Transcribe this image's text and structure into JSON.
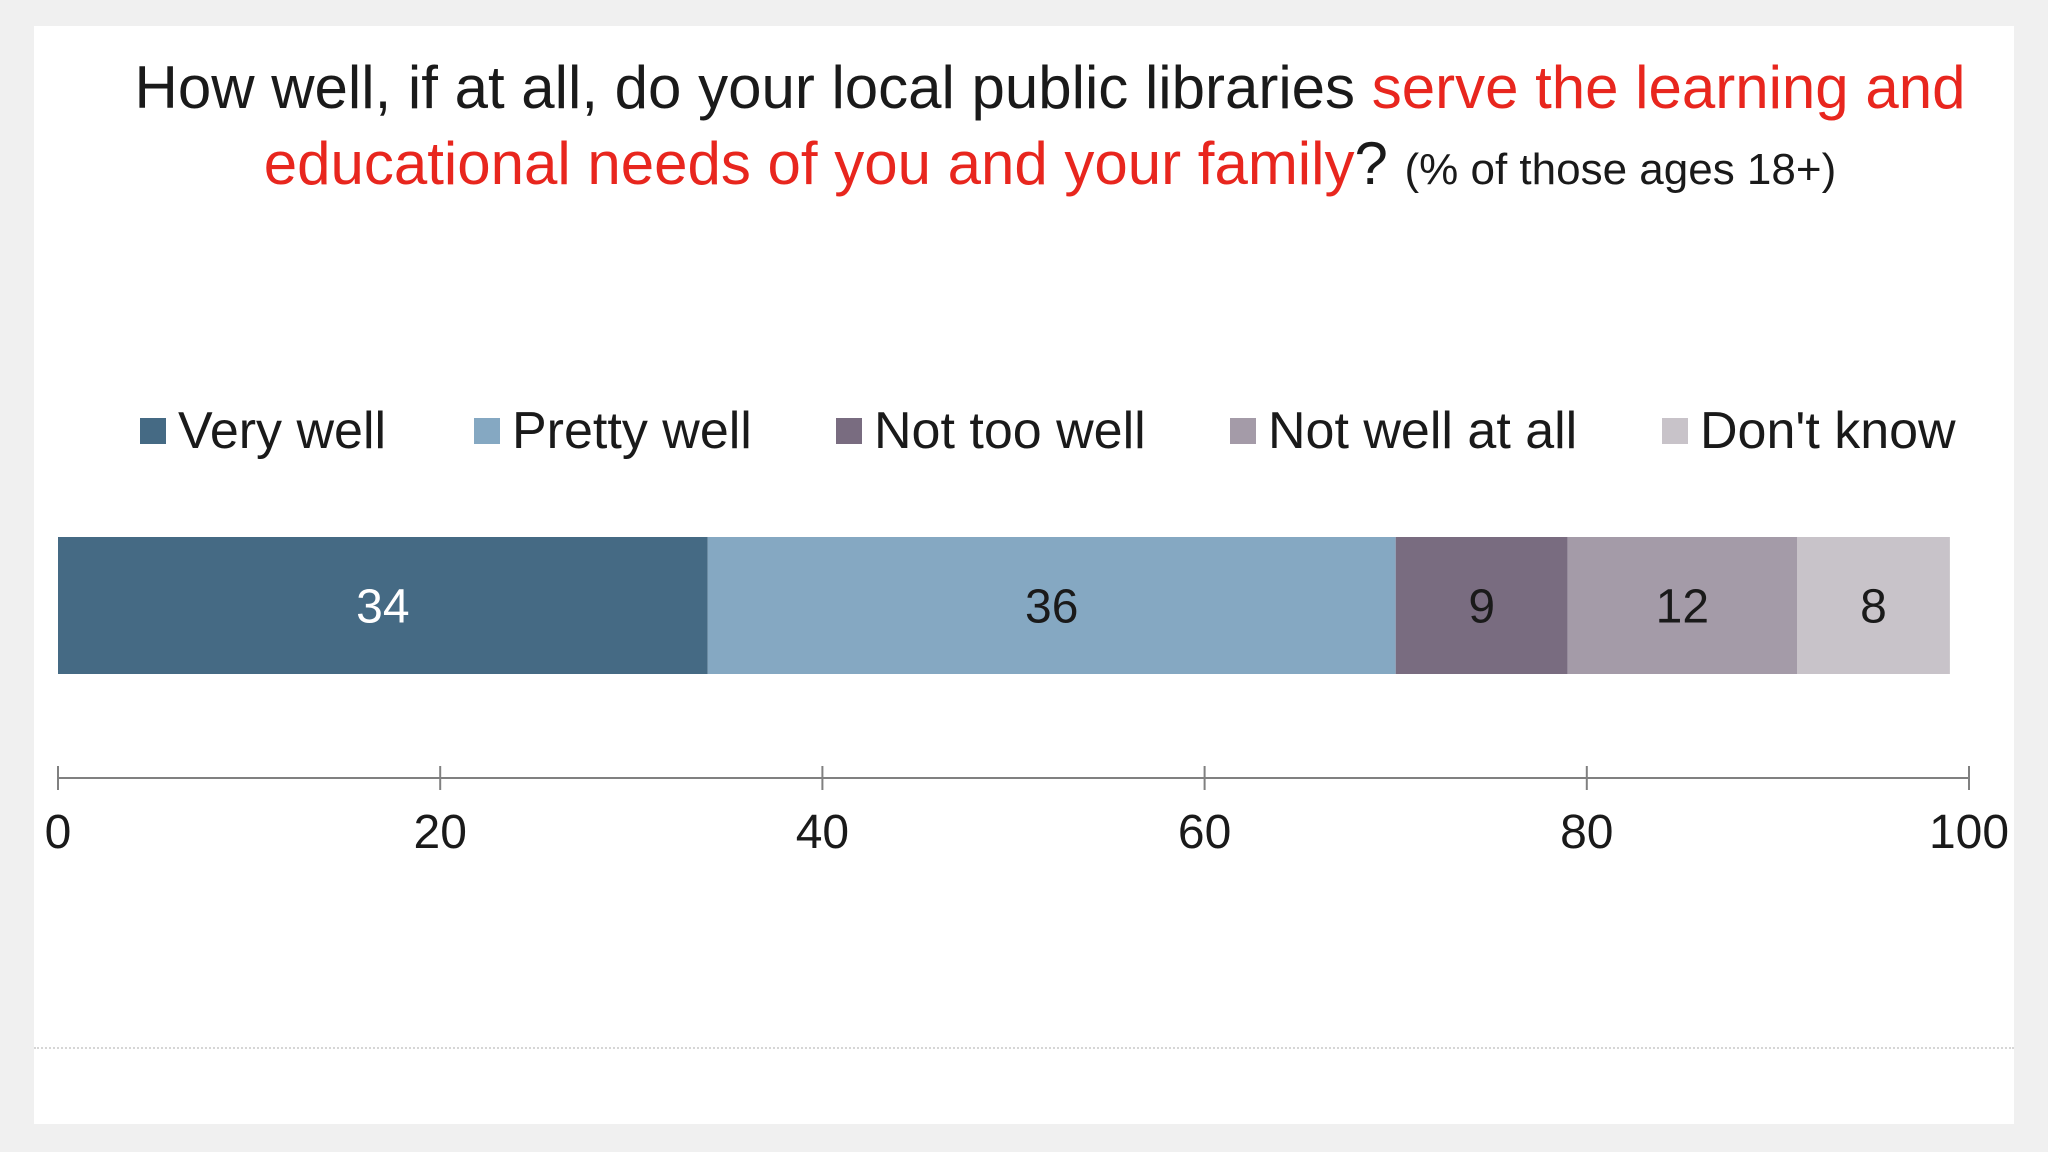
{
  "title": {
    "part1": "How well, if at all, do your local public libraries ",
    "highlight": "serve the learning and educational needs of you and your family",
    "part2": "?",
    "subtitle": "(% of those ages 18+)"
  },
  "colors": {
    "highlight": "#e8261e",
    "very_well": "#456a84",
    "pretty_well": "#85a8c2",
    "not_too_well": "#796c80",
    "not_well_at_all": "#a49ba8",
    "dont_know": "#c8c3c9"
  },
  "chart_data": {
    "type": "bar",
    "orientation": "horizontal",
    "stacked": true,
    "categories": [
      ""
    ],
    "series": [
      {
        "name": "Very well",
        "values": [
          34
        ],
        "color": "#456a84",
        "label_color": "#ffffff"
      },
      {
        "name": "Pretty well",
        "values": [
          36
        ],
        "color": "#85a8c2",
        "label_color": "#1a1a1a"
      },
      {
        "name": "Not too well",
        "values": [
          9
        ],
        "color": "#796c80",
        "label_color": "#1a1a1a"
      },
      {
        "name": "Not well at all",
        "values": [
          12
        ],
        "color": "#a49ba8",
        "label_color": "#1a1a1a"
      },
      {
        "name": "Don't know",
        "values": [
          8
        ],
        "color": "#c8c3c9",
        "label_color": "#1a1a1a"
      }
    ],
    "xlim": [
      0,
      100
    ],
    "xticks": [
      "0",
      "20",
      "40",
      "60",
      "80",
      "100"
    ],
    "grid": false,
    "legend": "top",
    "data_labels": true
  }
}
